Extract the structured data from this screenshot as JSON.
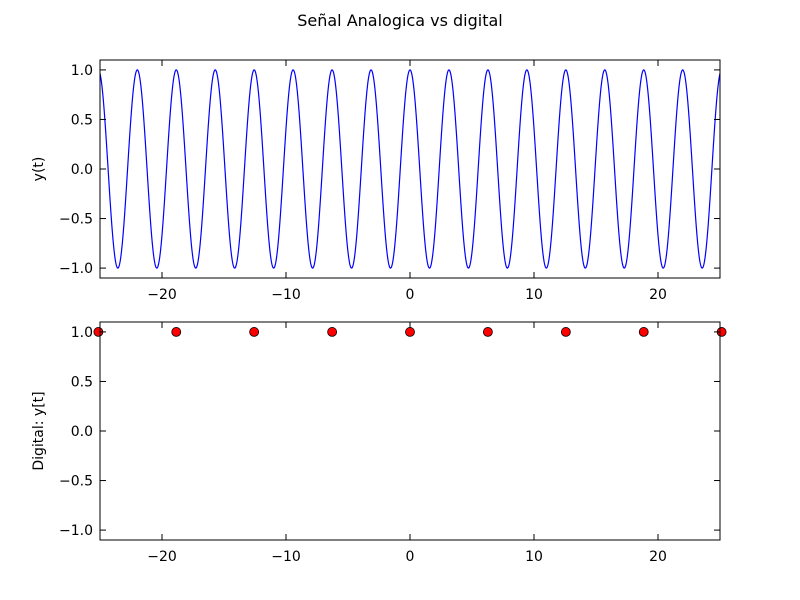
{
  "chart_data": {
    "title": "Señal Analogica vs digital",
    "panels": [
      {
        "type": "line",
        "ylabel": "y(t)",
        "xlim": [
          -25,
          25
        ],
        "ylim": [
          -1.1,
          1.1
        ],
        "xticks": [
          -20,
          -10,
          0,
          10,
          20
        ],
        "xtick_labels": [
          "−20",
          "−10",
          "0",
          "10",
          "20"
        ],
        "yticks": [
          1.0,
          0.5,
          0.0,
          -0.5,
          -1.0
        ],
        "ytick_labels": [
          "1.0",
          "0.5",
          "0.0",
          "−0.5",
          "−1.0"
        ],
        "series": [
          {
            "function": "cos(2t)",
            "t_range": [
              -25,
              25
            ],
            "color": "#0000ff"
          }
        ],
        "grid": false
      },
      {
        "type": "scatter",
        "ylabel": "Digital: y[t]",
        "xlim": [
          -25,
          25
        ],
        "ylim": [
          -1.1,
          1.1
        ],
        "xticks": [
          -20,
          -10,
          0,
          10,
          20
        ],
        "xtick_labels": [
          "−20",
          "−10",
          "0",
          "10",
          "20"
        ],
        "yticks": [
          1.0,
          0.5,
          0.0,
          -0.5,
          -1.0
        ],
        "ytick_labels": [
          "1.0",
          "0.5",
          "0.0",
          "−0.5",
          "−1.0"
        ],
        "series": [
          {
            "x": [
              -25.13,
              -18.85,
              -12.57,
              -6.28,
              0,
              6.28,
              12.57,
              18.85,
              25.13
            ],
            "y": [
              1.0,
              1.0,
              1.0,
              1.0,
              1.0,
              1.0,
              1.0,
              1.0,
              1.0
            ],
            "color": "#ff0000",
            "edgecolor": "#000000"
          }
        ],
        "grid": false
      }
    ]
  }
}
